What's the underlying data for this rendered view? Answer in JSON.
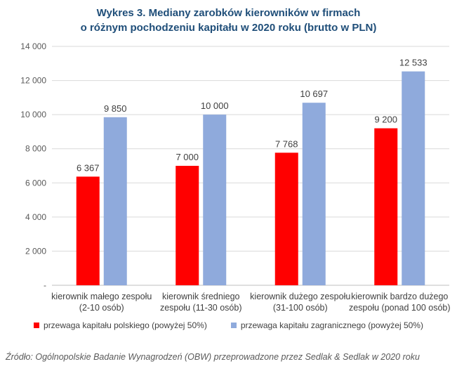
{
  "title_lines": [
    "Wykres 3. Mediany zarobków kierowników w firmach",
    "o różnym pochodzeniu kapitału w 2020 roku (brutto w PLN)"
  ],
  "source": "Źródło: Ogólnopolskie Badanie Wynagrodzeń (OBW) przeprowadzone przez Sedlak & Sedlak w 2020 roku",
  "chart_data": {
    "type": "bar",
    "title": "Wykres 3. Mediany zarobków kierowników w firmach o różnym pochodzeniu kapitału w 2020 roku (brutto w PLN)",
    "categories": [
      [
        "kierownik małego zespołu",
        "(2-10 osób)"
      ],
      [
        "kierownik średniego",
        "zespołu (11-30 osób)"
      ],
      [
        "kierownik dużego zespołu",
        "(31-100 osób)"
      ],
      [
        "kierownik bardzo dużego",
        "zespołu (ponad 100 osób)"
      ]
    ],
    "series": [
      {
        "name": "przewaga kapitału polskiego (powyżej 50%)",
        "color": "#ff0000",
        "values": [
          6367,
          7000,
          7768,
          9200
        ],
        "labels": [
          "6 367",
          "7 000",
          "7 768",
          "9 200"
        ]
      },
      {
        "name": "przewaga kapitału zagranicznego (powyżej 50%)",
        "color": "#8faadc",
        "values": [
          9850,
          10000,
          10697,
          12533
        ],
        "labels": [
          "9 850",
          "10 000",
          "10 697",
          "12 533"
        ]
      }
    ],
    "ylim": [
      0,
      14000
    ],
    "yticks": [
      0,
      2000,
      4000,
      6000,
      8000,
      10000,
      12000,
      14000
    ],
    "ytick_labels": [
      "-",
      "2 000",
      "4 000",
      "6 000",
      "8 000",
      "10 000",
      "12 000",
      "14 000"
    ],
    "grid": true,
    "legend": "bottom"
  }
}
